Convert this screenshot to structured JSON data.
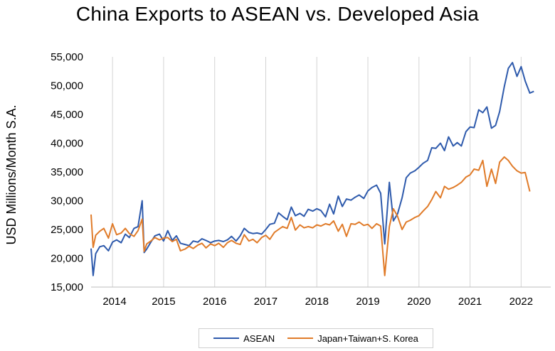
{
  "chart_data": {
    "type": "line",
    "title": "China Exports to ASEAN vs. Developed Asia",
    "ylabel": "USD Millions/Month S.A.",
    "xlabel": "",
    "ylim": [
      15000,
      55000
    ],
    "yticks": [
      15000,
      20000,
      25000,
      30000,
      35000,
      40000,
      45000,
      50000,
      55000
    ],
    "ytick_labels": [
      "15,000",
      "20,000",
      "25,000",
      "30,000",
      "35,000",
      "40,000",
      "45,000",
      "50,000",
      "55,000"
    ],
    "xlim": [
      2013.58,
      2022.58
    ],
    "xtick_labels": [
      "2014",
      "2015",
      "2016",
      "2017",
      "2018",
      "2019",
      "2020",
      "2021",
      "2022"
    ],
    "grid": "vertical",
    "legend_position": "bottom",
    "series": [
      {
        "name": "ASEAN",
        "color": "#2e5aac",
        "points": [
          [
            2013.58,
            21700
          ],
          [
            2013.62,
            17000
          ],
          [
            2013.67,
            20800
          ],
          [
            2013.75,
            22000
          ],
          [
            2013.83,
            22200
          ],
          [
            2013.92,
            21300
          ],
          [
            2014.0,
            22800
          ],
          [
            2014.08,
            23200
          ],
          [
            2014.17,
            22700
          ],
          [
            2014.25,
            24200
          ],
          [
            2014.33,
            23600
          ],
          [
            2014.42,
            25200
          ],
          [
            2014.5,
            25500
          ],
          [
            2014.58,
            30000
          ],
          [
            2014.62,
            21000
          ],
          [
            2014.67,
            21600
          ],
          [
            2014.75,
            22800
          ],
          [
            2014.83,
            23900
          ],
          [
            2014.92,
            24200
          ],
          [
            2015.0,
            23000
          ],
          [
            2015.08,
            24800
          ],
          [
            2015.17,
            23100
          ],
          [
            2015.25,
            23900
          ],
          [
            2015.33,
            22600
          ],
          [
            2015.42,
            22400
          ],
          [
            2015.5,
            22200
          ],
          [
            2015.58,
            23000
          ],
          [
            2015.67,
            22800
          ],
          [
            2015.75,
            23400
          ],
          [
            2015.83,
            23100
          ],
          [
            2015.92,
            22700
          ],
          [
            2016.0,
            23000
          ],
          [
            2016.08,
            23100
          ],
          [
            2016.17,
            22900
          ],
          [
            2016.25,
            23200
          ],
          [
            2016.33,
            23800
          ],
          [
            2016.42,
            23000
          ],
          [
            2016.5,
            23900
          ],
          [
            2016.58,
            25200
          ],
          [
            2016.67,
            24500
          ],
          [
            2016.75,
            24300
          ],
          [
            2016.83,
            24400
          ],
          [
            2016.92,
            24200
          ],
          [
            2017.0,
            25000
          ],
          [
            2017.08,
            25900
          ],
          [
            2017.17,
            26100
          ],
          [
            2017.25,
            27900
          ],
          [
            2017.33,
            27300
          ],
          [
            2017.42,
            26700
          ],
          [
            2017.5,
            28900
          ],
          [
            2017.58,
            27400
          ],
          [
            2017.67,
            27800
          ],
          [
            2017.75,
            27300
          ],
          [
            2017.83,
            28500
          ],
          [
            2017.92,
            28200
          ],
          [
            2018.0,
            28600
          ],
          [
            2018.08,
            28300
          ],
          [
            2018.17,
            27200
          ],
          [
            2018.25,
            29400
          ],
          [
            2018.33,
            27700
          ],
          [
            2018.42,
            30800
          ],
          [
            2018.5,
            29000
          ],
          [
            2018.58,
            30300
          ],
          [
            2018.67,
            30100
          ],
          [
            2018.75,
            30600
          ],
          [
            2018.83,
            31000
          ],
          [
            2018.92,
            30400
          ],
          [
            2019.0,
            31700
          ],
          [
            2019.08,
            32300
          ],
          [
            2019.17,
            32700
          ],
          [
            2019.25,
            31300
          ],
          [
            2019.33,
            22500
          ],
          [
            2019.42,
            33200
          ],
          [
            2019.5,
            26500
          ],
          [
            2019.58,
            27700
          ],
          [
            2019.67,
            30500
          ],
          [
            2019.75,
            34000
          ],
          [
            2019.83,
            34800
          ],
          [
            2019.92,
            35200
          ],
          [
            2020.0,
            35800
          ],
          [
            2020.08,
            36500
          ],
          [
            2020.17,
            37000
          ],
          [
            2020.25,
            39200
          ],
          [
            2020.33,
            39100
          ],
          [
            2020.42,
            40000
          ],
          [
            2020.5,
            38700
          ],
          [
            2020.58,
            41100
          ],
          [
            2020.67,
            39500
          ],
          [
            2020.75,
            40100
          ],
          [
            2020.83,
            39500
          ],
          [
            2020.92,
            42000
          ],
          [
            2021.0,
            42800
          ],
          [
            2021.08,
            42700
          ],
          [
            2021.17,
            45800
          ],
          [
            2021.25,
            45300
          ],
          [
            2021.33,
            46300
          ],
          [
            2021.42,
            42600
          ],
          [
            2021.5,
            43100
          ],
          [
            2021.58,
            45500
          ],
          [
            2021.67,
            49800
          ],
          [
            2021.75,
            53000
          ],
          [
            2021.83,
            54000
          ],
          [
            2021.92,
            51600
          ],
          [
            2022.0,
            53300
          ],
          [
            2022.08,
            50800
          ],
          [
            2022.17,
            48700
          ],
          [
            2022.25,
            49000
          ]
        ]
      },
      {
        "name": "Japan+Taiwan+S. Korea",
        "color": "#e07b29",
        "points": [
          [
            2013.58,
            27600
          ],
          [
            2013.62,
            21900
          ],
          [
            2013.67,
            24000
          ],
          [
            2013.75,
            24700
          ],
          [
            2013.83,
            25200
          ],
          [
            2013.92,
            23500
          ],
          [
            2014.0,
            26000
          ],
          [
            2014.08,
            24100
          ],
          [
            2014.17,
            24400
          ],
          [
            2014.25,
            25200
          ],
          [
            2014.33,
            24300
          ],
          [
            2014.42,
            23800
          ],
          [
            2014.5,
            24800
          ],
          [
            2014.58,
            26800
          ],
          [
            2014.62,
            21200
          ],
          [
            2014.67,
            22500
          ],
          [
            2014.75,
            23000
          ],
          [
            2014.83,
            23600
          ],
          [
            2014.92,
            23200
          ],
          [
            2015.0,
            23500
          ],
          [
            2015.08,
            23600
          ],
          [
            2015.17,
            22900
          ],
          [
            2015.25,
            23300
          ],
          [
            2015.33,
            21300
          ],
          [
            2015.42,
            21600
          ],
          [
            2015.5,
            22100
          ],
          [
            2015.58,
            21700
          ],
          [
            2015.67,
            22300
          ],
          [
            2015.75,
            22600
          ],
          [
            2015.83,
            21800
          ],
          [
            2015.92,
            22500
          ],
          [
            2016.0,
            22200
          ],
          [
            2016.08,
            22600
          ],
          [
            2016.17,
            21900
          ],
          [
            2016.25,
            22700
          ],
          [
            2016.33,
            23100
          ],
          [
            2016.42,
            22600
          ],
          [
            2016.5,
            22400
          ],
          [
            2016.58,
            24100
          ],
          [
            2016.67,
            23000
          ],
          [
            2016.75,
            23300
          ],
          [
            2016.83,
            22700
          ],
          [
            2016.92,
            23600
          ],
          [
            2017.0,
            24000
          ],
          [
            2017.08,
            23300
          ],
          [
            2017.17,
            24500
          ],
          [
            2017.25,
            25000
          ],
          [
            2017.33,
            25500
          ],
          [
            2017.42,
            25200
          ],
          [
            2017.5,
            27100
          ],
          [
            2017.58,
            24900
          ],
          [
            2017.67,
            25800
          ],
          [
            2017.75,
            25300
          ],
          [
            2017.83,
            25500
          ],
          [
            2017.92,
            25300
          ],
          [
            2018.0,
            25800
          ],
          [
            2018.08,
            25600
          ],
          [
            2018.17,
            26000
          ],
          [
            2018.25,
            25800
          ],
          [
            2018.33,
            26500
          ],
          [
            2018.42,
            24700
          ],
          [
            2018.5,
            25900
          ],
          [
            2018.58,
            23800
          ],
          [
            2018.67,
            26000
          ],
          [
            2018.75,
            25900
          ],
          [
            2018.83,
            26300
          ],
          [
            2018.92,
            25700
          ],
          [
            2019.0,
            25900
          ],
          [
            2019.08,
            25200
          ],
          [
            2019.17,
            26000
          ],
          [
            2019.25,
            25600
          ],
          [
            2019.33,
            17000
          ],
          [
            2019.42,
            25500
          ],
          [
            2019.5,
            28600
          ],
          [
            2019.58,
            27300
          ],
          [
            2019.67,
            25000
          ],
          [
            2019.75,
            26300
          ],
          [
            2019.83,
            26600
          ],
          [
            2019.92,
            27100
          ],
          [
            2020.0,
            27400
          ],
          [
            2020.08,
            28200
          ],
          [
            2020.17,
            29000
          ],
          [
            2020.25,
            30200
          ],
          [
            2020.33,
            31600
          ],
          [
            2020.42,
            30500
          ],
          [
            2020.5,
            32500
          ],
          [
            2020.58,
            32000
          ],
          [
            2020.67,
            32300
          ],
          [
            2020.75,
            32700
          ],
          [
            2020.83,
            33200
          ],
          [
            2020.92,
            34100
          ],
          [
            2021.0,
            34500
          ],
          [
            2021.08,
            35500
          ],
          [
            2021.17,
            35300
          ],
          [
            2021.25,
            37000
          ],
          [
            2021.33,
            32500
          ],
          [
            2021.42,
            35500
          ],
          [
            2021.5,
            33000
          ],
          [
            2021.58,
            36700
          ],
          [
            2021.67,
            37600
          ],
          [
            2021.75,
            37000
          ],
          [
            2021.83,
            36000
          ],
          [
            2021.92,
            35200
          ],
          [
            2022.0,
            34800
          ],
          [
            2022.08,
            34900
          ],
          [
            2022.17,
            31600
          ]
        ]
      }
    ]
  }
}
